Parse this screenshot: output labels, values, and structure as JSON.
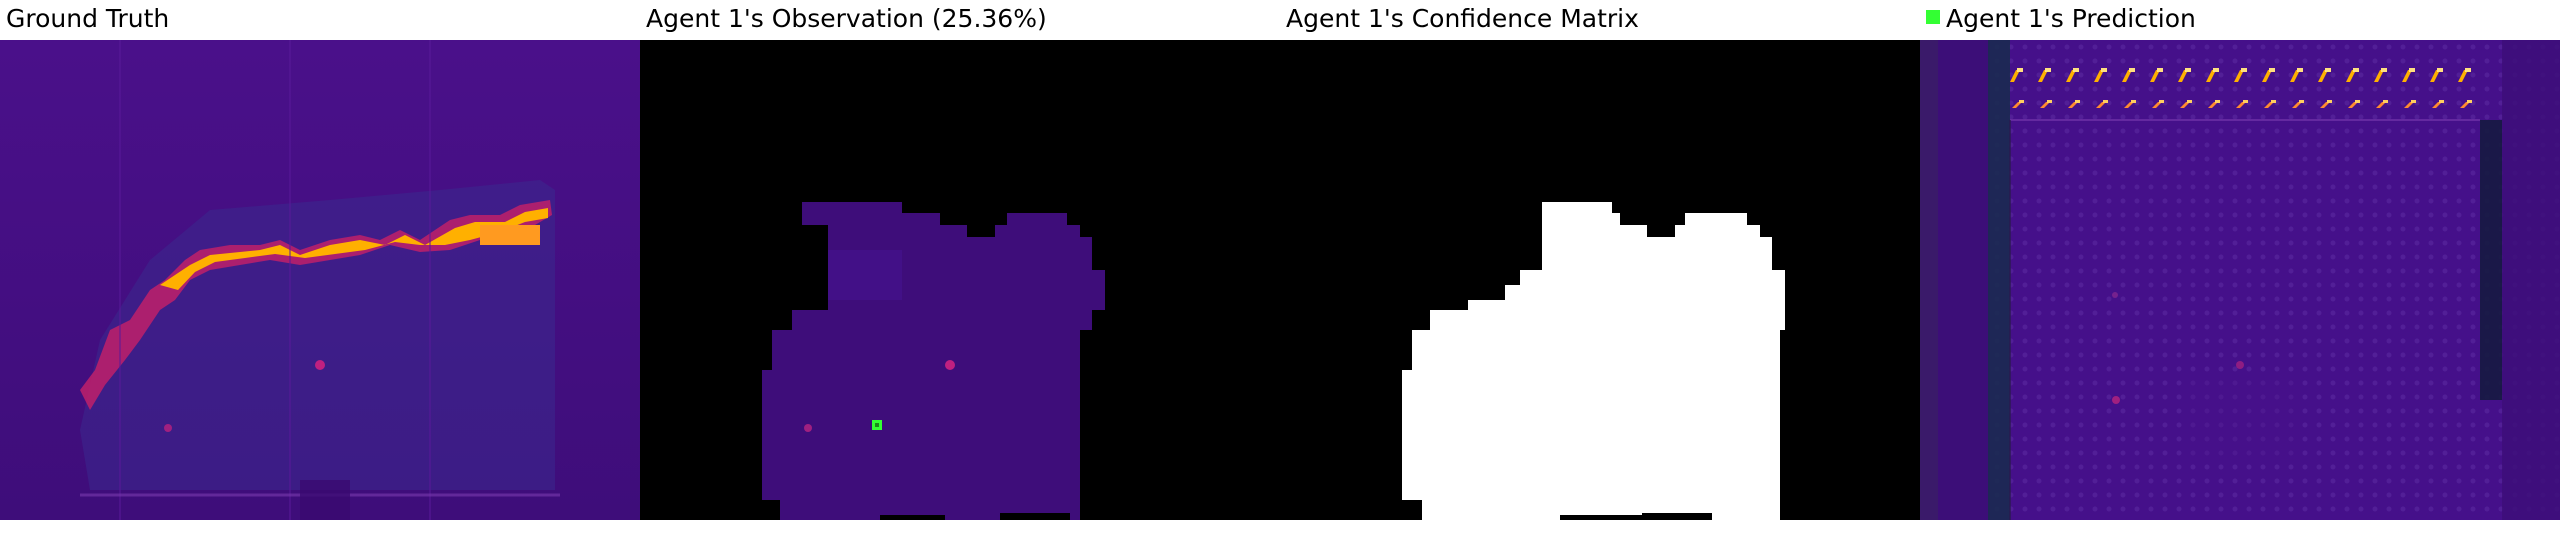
{
  "panels": [
    {
      "title": "Ground Truth"
    },
    {
      "title": "Agent 1's Observation (25.36%)"
    },
    {
      "title": "Agent 1's Confidence Matrix"
    },
    {
      "title": "Agent 1's Prediction",
      "marker_color": "#33ff33"
    }
  ],
  "colors": {
    "background": "#4a0f8a",
    "hot": "#ffb000",
    "mask": "#000000",
    "confidence": "#ffffff",
    "agent_marker": "#33ff33"
  }
}
